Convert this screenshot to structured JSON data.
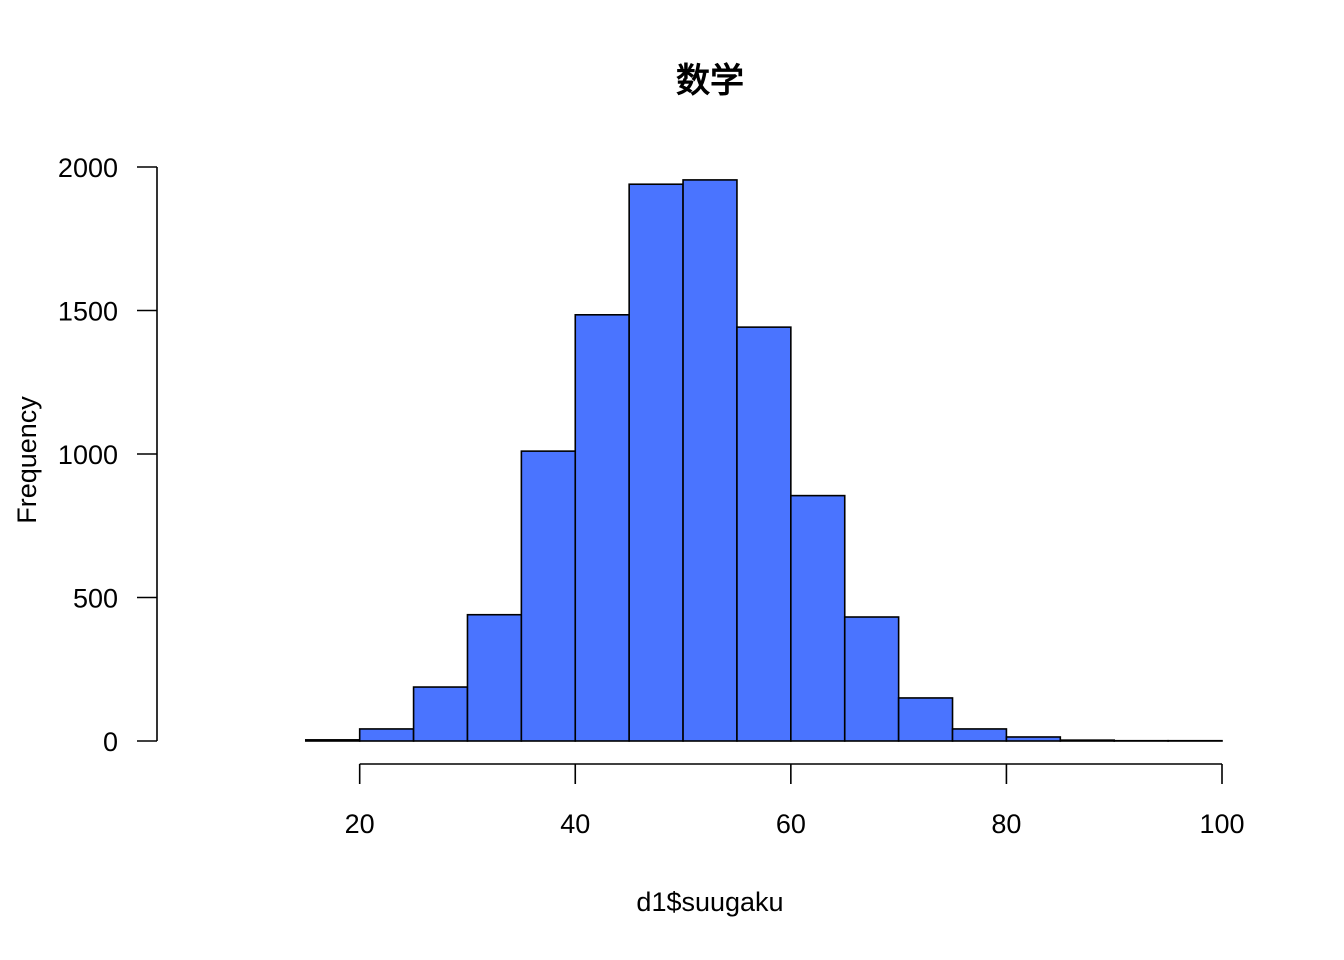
{
  "chart_data": {
    "type": "bar",
    "title": "数学",
    "xlabel": "d1$suugaku",
    "ylabel": "Frequency",
    "bar_color": "#4A74FF",
    "bins": [
      {
        "from": 5,
        "to": 10,
        "count": 0
      },
      {
        "from": 10,
        "to": 15,
        "count": 0
      },
      {
        "from": 15,
        "to": 20,
        "count": 4
      },
      {
        "from": 20,
        "to": 25,
        "count": 42
      },
      {
        "from": 25,
        "to": 30,
        "count": 188
      },
      {
        "from": 30,
        "to": 35,
        "count": 440
      },
      {
        "from": 35,
        "to": 40,
        "count": 1010
      },
      {
        "from": 40,
        "to": 45,
        "count": 1485
      },
      {
        "from": 45,
        "to": 50,
        "count": 1940
      },
      {
        "from": 50,
        "to": 55,
        "count": 1955
      },
      {
        "from": 55,
        "to": 60,
        "count": 1442
      },
      {
        "from": 60,
        "to": 65,
        "count": 855
      },
      {
        "from": 65,
        "to": 70,
        "count": 432
      },
      {
        "from": 70,
        "to": 75,
        "count": 150
      },
      {
        "from": 75,
        "to": 80,
        "count": 42
      },
      {
        "from": 80,
        "to": 85,
        "count": 14
      },
      {
        "from": 85,
        "to": 90,
        "count": 3
      },
      {
        "from": 90,
        "to": 95,
        "count": 1
      },
      {
        "from": 95,
        "to": 100,
        "count": 1
      }
    ],
    "x_ticks": [
      20,
      40,
      60,
      80,
      100
    ],
    "x_tick_labels": [
      "20",
      "40",
      "60",
      "80",
      "100"
    ],
    "y_ticks": [
      0,
      500,
      1000,
      1500,
      2000
    ],
    "y_tick_labels": [
      "0",
      "500",
      "1000",
      "1500",
      "2000"
    ],
    "xlim": [
      5,
      100
    ],
    "ylim": [
      0,
      2000
    ],
    "grid": false,
    "legend": "none"
  }
}
